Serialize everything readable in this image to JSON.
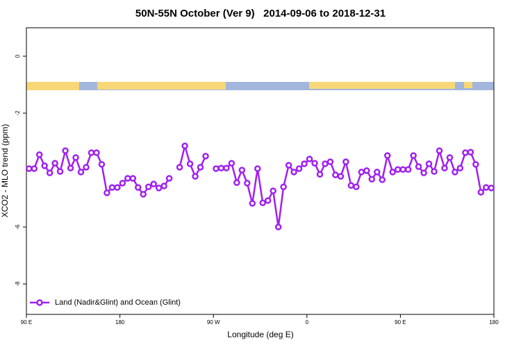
{
  "chart_data": {
    "type": "line",
    "title": "50N-55N October (Ver 9)   2014-09-06 to 2018-12-31",
    "xlabel": "Longitude (deg E)",
    "ylabel": "XCO2 - MLO trend (ppm)",
    "xlim": [
      90,
      540
    ],
    "ylim": [
      -9.07,
      1
    ],
    "xticks": [
      {
        "value": 90,
        "label": "90 E"
      },
      180,
      {
        "value": 270,
        "label": "90 W"
      },
      {
        "value": 360,
        "label": "0"
      },
      {
        "value": 450,
        "label": "90 E"
      },
      180
    ],
    "yticks": [
      0,
      -2,
      -6,
      -8
    ],
    "legend": "bottom left",
    "x": [
      92.5,
      97.5,
      102.5,
      107.5,
      112.5,
      117.5,
      122.5,
      127.5,
      132.5,
      137.5,
      142.5,
      147.5,
      152.5,
      157.5,
      162.5,
      167.5,
      172.5,
      177.5,
      182.5,
      187.5,
      192.5,
      197.5,
      202.5,
      207.5,
      212.5,
      217.5,
      222.5,
      227.5,
      232.5,
      237.5,
      242.5,
      247.5,
      252.5,
      257.5,
      262.5,
      267.5,
      272.5,
      277.5,
      282.5,
      287.5,
      292.5,
      297.5,
      302.5,
      307.5,
      312.5,
      317.5,
      322.5,
      327.5,
      332.5,
      337.5,
      342.5,
      347.5,
      352.5,
      357.5,
      362.5,
      367.5,
      372.5,
      377.5,
      382.5,
      387.5,
      392.5,
      397.5,
      402.5,
      407.5,
      412.5,
      417.5,
      422.5,
      427.5,
      432.5,
      437.5,
      442.5,
      447.5,
      452.5,
      457.5,
      462.5,
      467.5,
      472.5,
      477.5,
      482.5,
      487.5,
      492.5,
      497.5,
      502.5,
      507.5,
      512.5,
      517.5,
      522.5,
      527.5,
      532.5,
      537.5
    ],
    "series": [
      {
        "name": "Land (Nadir&Glint) and Ocean (Glint)",
        "color": "#a020f0",
        "values": [
          -3.95,
          -3.95,
          -3.46,
          -3.85,
          -4.1,
          -3.76,
          -4.05,
          -3.32,
          -3.93,
          -3.56,
          -4.07,
          -3.9,
          -3.39,
          -3.39,
          -3.8,
          -4.8,
          -4.61,
          -4.61,
          -4.46,
          -4.29,
          -4.29,
          -4.61,
          -4.85,
          -4.59,
          -4.49,
          -4.63,
          -4.56,
          -4.29,
          null,
          -3.9,
          -3.15,
          -3.78,
          -4.22,
          -3.9,
          -3.51,
          null,
          -3.95,
          -3.93,
          -3.93,
          -3.76,
          -4.44,
          -4.0,
          -4.46,
          -5.17,
          -3.95,
          -5.15,
          -5.07,
          -4.73,
          -6.0,
          -4.59,
          -3.83,
          -4.07,
          -3.95,
          -3.78,
          -3.61,
          -3.76,
          -4.15,
          -3.78,
          -3.71,
          -4.17,
          -4.22,
          -3.71,
          -4.54,
          -4.59,
          -4.07,
          -4.02,
          -4.32,
          -4.07,
          -4.34,
          -3.49,
          -4.07,
          -3.98,
          -3.98,
          -3.98,
          -3.49,
          -3.88,
          -4.1,
          -3.78,
          -4.05,
          -3.32,
          -3.93,
          -3.56,
          -4.07,
          -3.93,
          -3.39,
          -3.37,
          -3.8,
          -4.78,
          -4.61,
          -4.63
        ]
      }
    ]
  }
}
